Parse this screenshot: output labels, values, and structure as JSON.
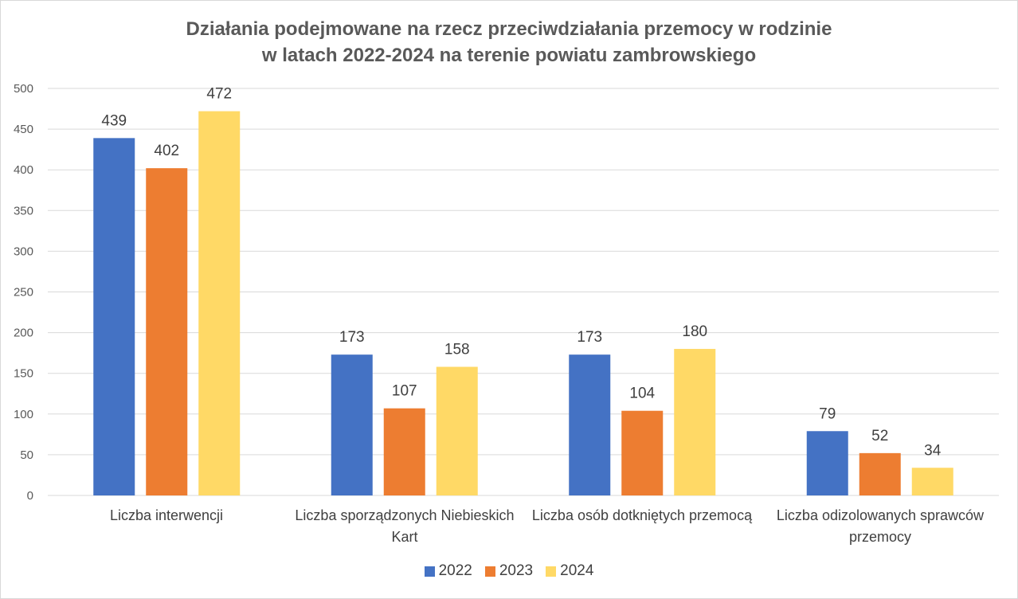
{
  "chart_data": {
    "type": "bar",
    "title": [
      "Działania podejmowane na rzecz przeciwdziałania przemocy w rodzinie",
      "w latach 2022-2024 na terenie powiatu zambrowskiego"
    ],
    "categories": [
      "Liczba interwencji",
      "Liczba sporządzonych Niebieskich Kart",
      "Liczba osób dotkniętych przemocą",
      "Liczba odizolowanych sprawców przemocy"
    ],
    "series": [
      {
        "name": "2022",
        "color": "#4472C4",
        "values": [
          439,
          173,
          173,
          79
        ]
      },
      {
        "name": "2023",
        "color": "#ED7D31",
        "values": [
          402,
          107,
          104,
          52
        ]
      },
      {
        "name": "2024",
        "color": "#FFD966",
        "values": [
          472,
          158,
          180,
          34
        ]
      }
    ],
    "ylim": [
      0,
      500
    ],
    "yticks": [
      0,
      50,
      100,
      150,
      200,
      250,
      300,
      350,
      400,
      450,
      500
    ],
    "grid": true,
    "data_labels": true,
    "legend": "bottom"
  }
}
